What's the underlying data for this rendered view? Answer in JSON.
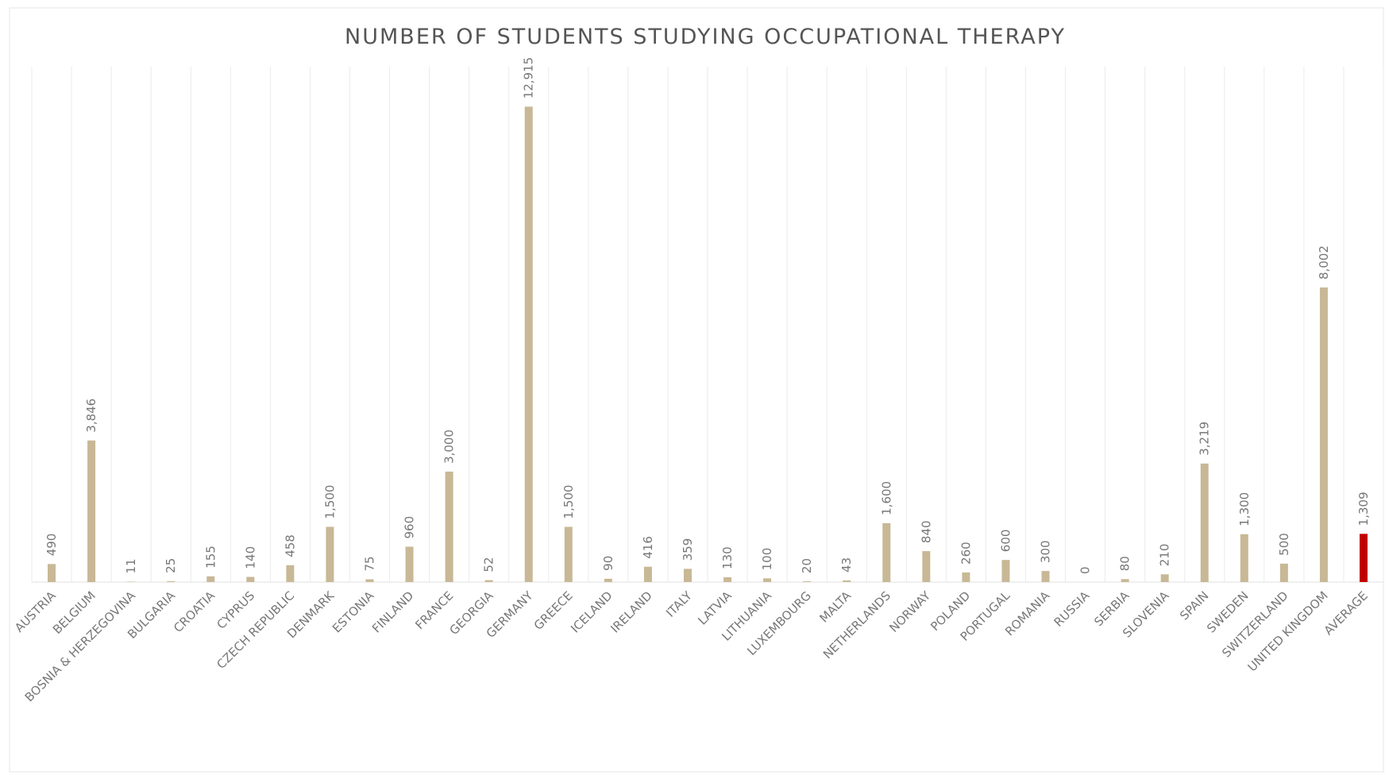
{
  "chart_data": {
    "type": "bar",
    "title": "NUMBER OF STUDENTS STUDYING OCCUPATIONAL THERAPY",
    "categories": [
      "AUSTRIA",
      "BELGIUM",
      "BOSNIA & HERZEGOVINA",
      "BULGARIA",
      "CROATIA",
      "CYPRUS",
      "CZECH REPUBLIC",
      "DENMARK",
      "ESTONIA",
      "FINLAND",
      "FRANCE",
      "GEORGIA",
      "GERMANY",
      "GREECE",
      "ICELAND",
      "IRELAND",
      "ITALY",
      "LATVIA",
      "LITHUANIA",
      "LUXEMBOURG",
      "MALTA",
      "NETHERLANDS",
      "NORWAY",
      "POLAND",
      "PORTUGAL",
      "ROMANIA",
      "RUSSIA",
      "SERBIA",
      "SLOVENIA",
      "SPAIN",
      "SWEDEN",
      "SWITZERLAND",
      "UNITED KINGDOM",
      "AVERAGE"
    ],
    "values": [
      490,
      3846,
      11,
      25,
      155,
      140,
      458,
      1500,
      75,
      960,
      3000,
      52,
      12915,
      1500,
      90,
      416,
      359,
      130,
      100,
      20,
      43,
      1600,
      840,
      260,
      600,
      300,
      0,
      80,
      210,
      3219,
      1300,
      500,
      8002,
      1309
    ],
    "value_labels": [
      "490",
      "3,846",
      "11",
      "25",
      "155",
      "140",
      "458",
      "1,500",
      "75",
      "960",
      "3,000",
      "52",
      "12,915",
      "1,500",
      "90",
      "416",
      "359",
      "130",
      "100",
      "20",
      "43",
      "1,600",
      "840",
      "260",
      "600",
      "300",
      "0",
      "80",
      "210",
      "3,219",
      "1,300",
      "500",
      "8,002",
      "1,309"
    ],
    "colors": [
      "#c8b896",
      "#c8b896",
      "#c8b896",
      "#c8b896",
      "#c8b896",
      "#c8b896",
      "#c8b896",
      "#c8b896",
      "#c8b896",
      "#c8b896",
      "#c8b896",
      "#c8b896",
      "#c8b896",
      "#c8b896",
      "#c8b896",
      "#c8b896",
      "#c8b896",
      "#c8b896",
      "#c8b896",
      "#c8b896",
      "#c8b896",
      "#c8b896",
      "#c8b896",
      "#c8b896",
      "#c8b896",
      "#c8b896",
      "#c8b896",
      "#c8b896",
      "#c8b896",
      "#c8b896",
      "#c8b896",
      "#c8b896",
      "#c8b896",
      "#c00000"
    ],
    "ylim": [
      0,
      14000
    ]
  }
}
